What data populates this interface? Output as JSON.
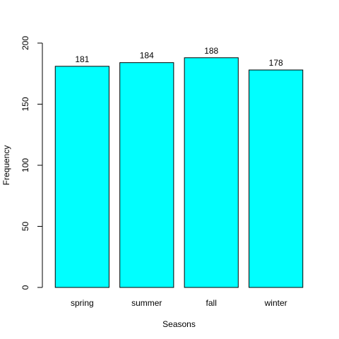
{
  "chart_data": {
    "type": "bar",
    "categories": [
      "spring",
      "summer",
      "fall",
      "winter"
    ],
    "values": [
      181,
      184,
      188,
      178
    ],
    "data_labels": [
      "181",
      "184",
      "188",
      "178"
    ],
    "title": "",
    "xlabel": "Seasons",
    "ylabel": "Frequency",
    "ylim": [
      0,
      200
    ],
    "yticks": [
      0,
      50,
      100,
      150,
      200
    ],
    "ytick_labels": [
      "0",
      "50",
      "100",
      "150",
      "200"
    ],
    "grid": false,
    "legend": "none",
    "bar_color": "#00FFFF",
    "bar_border_color": "#000000"
  }
}
